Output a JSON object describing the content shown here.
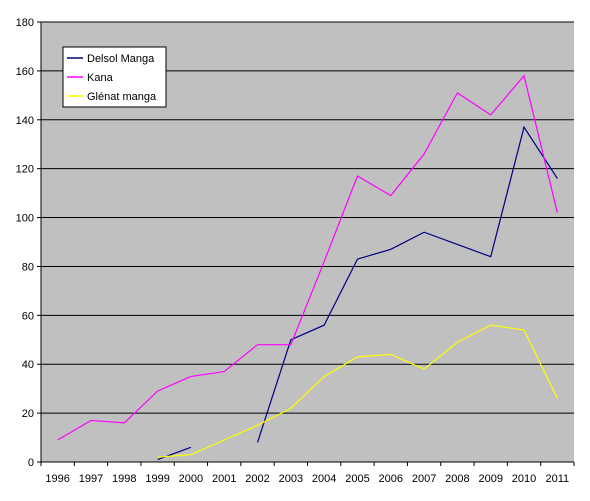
{
  "chart_data": {
    "type": "line",
    "x": [
      "1996",
      "1997",
      "1998",
      "1999",
      "2000",
      "2001",
      "2002",
      "2003",
      "2004",
      "2005",
      "2006",
      "2007",
      "2008",
      "2009",
      "2010",
      "2011"
    ],
    "ylim": [
      0,
      180
    ],
    "yticks": [
      0,
      20,
      40,
      60,
      80,
      100,
      120,
      140,
      160,
      180
    ],
    "grid": true,
    "plot_background": "#c0c0c0",
    "legend_position": "top-left",
    "series": [
      {
        "name": "Delsol Manga",
        "color": "#000080",
        "values": [
          null,
          null,
          null,
          1,
          6,
          null,
          8,
          50,
          56,
          83,
          87,
          94,
          89,
          84,
          137,
          116
        ]
      },
      {
        "name": "Kana",
        "color": "#ff00ff",
        "values": [
          9,
          17,
          16,
          29,
          35,
          37,
          48,
          48,
          82,
          117,
          109,
          126,
          151,
          142,
          158,
          102
        ]
      },
      {
        "name": "Glénat manga",
        "color": "#ffff00",
        "values": [
          null,
          null,
          null,
          2,
          3,
          9,
          15,
          22,
          35,
          43,
          44,
          38,
          49,
          56,
          54,
          26
        ]
      }
    ]
  }
}
